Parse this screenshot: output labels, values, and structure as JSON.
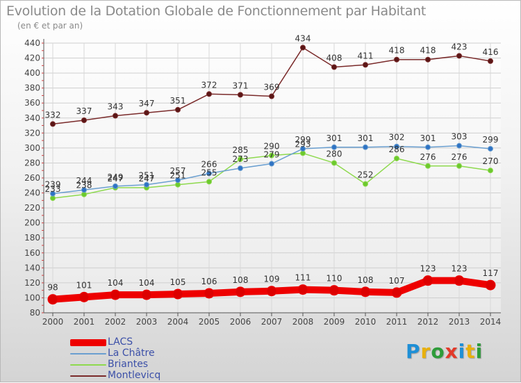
{
  "title": "Evolution de la Dotation Globale de Fonctionnement par Habitant",
  "subtitle": "(en € et par an)",
  "brand": {
    "text": "Proxiti",
    "letter_colors": [
      "#1e8fd6",
      "#e8b00c",
      "#2e9c3a",
      "#e23a2a",
      "#1e8fd6",
      "#e8b00c",
      "#2e9c3a"
    ]
  },
  "chart_data": {
    "type": "line",
    "title": "Evolution de la Dotation Globale de Fonctionnement par Habitant",
    "subtitle": "(en € et par an)",
    "xlabel": "",
    "ylabel": "",
    "x": [
      2000,
      2001,
      2002,
      2003,
      2004,
      2005,
      2006,
      2007,
      2008,
      2009,
      2010,
      2011,
      2012,
      2013,
      2014
    ],
    "ylim": [
      80,
      440
    ],
    "yticks": [
      80,
      100,
      120,
      140,
      160,
      180,
      200,
      220,
      240,
      260,
      280,
      300,
      320,
      340,
      360,
      380,
      400,
      420,
      440
    ],
    "grid": true,
    "legend_position": "bottom-left",
    "series": [
      {
        "name": "Montlevicq",
        "color": "#7a2a2a",
        "values": [
          332,
          337,
          343,
          347,
          351,
          372,
          371,
          369,
          434,
          408,
          411,
          418,
          418,
          423,
          416
        ]
      },
      {
        "name": "Briantes",
        "color": "#8ed94e",
        "values": [
          233,
          238,
          247,
          247,
          251,
          255,
          285,
          290,
          293,
          280,
          252,
          286,
          276,
          276,
          270
        ]
      },
      {
        "name": "La Châtre",
        "color": "#6a9fd0",
        "values": [
          239,
          244,
          249,
          251,
          257,
          266,
          273,
          279,
          299,
          301,
          301,
          302,
          301,
          303,
          299
        ]
      },
      {
        "name": "LACS",
        "color": "#ee0000",
        "values": [
          98,
          101,
          104,
          104,
          105,
          106,
          108,
          109,
          111,
          110,
          108,
          107,
          123,
          123,
          117
        ]
      }
    ],
    "legend_order": [
      "LACS",
      "La Châtre",
      "Briantes",
      "Montlevicq"
    ]
  }
}
